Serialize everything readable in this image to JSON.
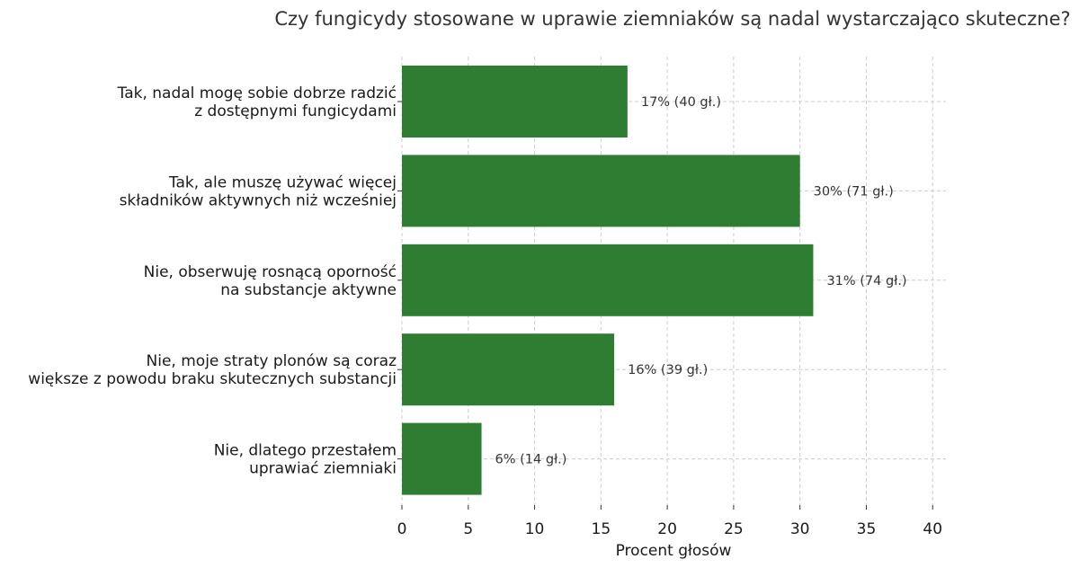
{
  "chart_data": {
    "type": "bar",
    "orientation": "horizontal",
    "title": "Czy fungicydy stosowane w uprawie ziemniaków są nadal wystarczająco skuteczne?",
    "xlabel": "Procent głosów",
    "ylabel": "",
    "xlim": [
      0,
      41
    ],
    "xticks": [
      0,
      5,
      10,
      15,
      20,
      25,
      30,
      35,
      40
    ],
    "grid": true,
    "bar_color": "#2e7d32",
    "categories": [
      [
        "Tak, nadal mogę sobie dobrze radzić",
        "z dostępnymi fungicydami"
      ],
      [
        "Tak, ale muszę używać więcej",
        "składników aktywnych niż wcześniej"
      ],
      [
        "Nie, obserwuję rosnącą oporność",
        "na substancje aktywne"
      ],
      [
        "Nie, moje straty plonów są coraz",
        "większe z powodu braku skutecznych substancji"
      ],
      [
        "Nie, dlatego przestałem",
        "uprawiać ziemniaki"
      ]
    ],
    "values": [
      17,
      30,
      31,
      16,
      6
    ],
    "data_labels": [
      "17% (40 gł.)",
      "30% (71 gł.)",
      "31% (74 gł.)",
      "16% (39 gł.)",
      "6% (14 gł.)"
    ]
  }
}
